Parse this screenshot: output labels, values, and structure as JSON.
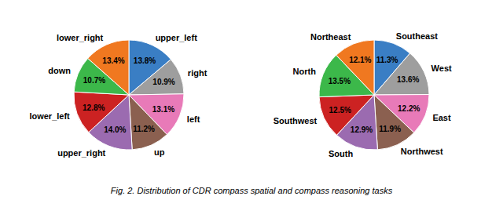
{
  "chart_data": [
    {
      "type": "pie",
      "categories": [
        "upper_left",
        "right",
        "left",
        "up",
        "upper_right",
        "lower_left",
        "down",
        "lower_right"
      ],
      "values": [
        13.8,
        10.9,
        13.1,
        11.2,
        14.0,
        12.8,
        10.7,
        13.4
      ],
      "value_labels": [
        "13.8%",
        "10.9%",
        "13.1%",
        "11.2%",
        "14.0%",
        "12.8%",
        "10.7%",
        "13.4%"
      ],
      "colors": [
        "#3a7ec4",
        "#9e9e9e",
        "#e87ab8",
        "#8b6050",
        "#9b6bb0",
        "#cc2222",
        "#3cb84a",
        "#f07820"
      ],
      "data_labels": true
    },
    {
      "type": "pie",
      "categories": [
        "Southeast",
        "West",
        "East",
        "Northwest",
        "South",
        "Southwest",
        "North",
        "Northeast"
      ],
      "values": [
        11.3,
        13.6,
        12.2,
        11.9,
        12.9,
        12.5,
        13.5,
        12.1
      ],
      "value_labels": [
        "11.3%",
        "13.6%",
        "12.2%",
        "11.9%",
        "12.9%",
        "12.5%",
        "13.5%",
        "12.1%"
      ],
      "colors": [
        "#3a7ec4",
        "#9e9e9e",
        "#e87ab8",
        "#8b6050",
        "#9b6bb0",
        "#cc2222",
        "#3cb84a",
        "#f07820"
      ],
      "data_labels": true
    }
  ],
  "caption": "Fig. 2.  Distribution of CDR compass spatial and compass reasoning tasks"
}
